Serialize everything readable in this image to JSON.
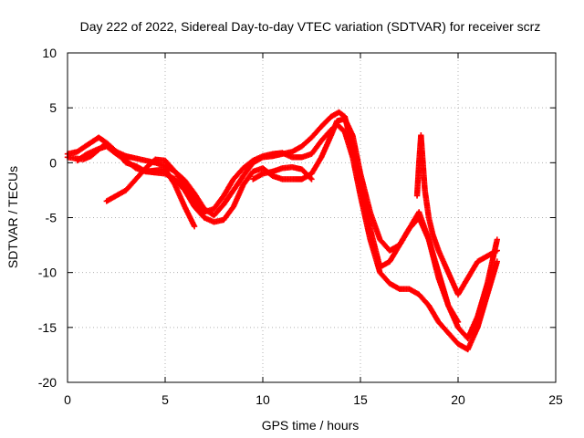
{
  "chart_data": {
    "type": "scatter",
    "title": "Day 222 of 2022, Sidereal Day-to-day VTEC variation (SDTVAR) for receiver scrz",
    "xlabel": "GPS time / hours",
    "ylabel": "SDTVAR / TECUs",
    "xlim": [
      0,
      25
    ],
    "ylim": [
      -20,
      10
    ],
    "xticks": [
      0,
      5,
      10,
      15,
      20,
      25
    ],
    "yticks": [
      -20,
      -15,
      -10,
      -5,
      0,
      5,
      10
    ],
    "x_tick_labels": [
      "0",
      "5",
      "10",
      "15",
      "20",
      "25"
    ],
    "y_tick_labels": [
      "-20",
      "-15",
      "-10",
      "-5",
      "0",
      "5",
      "10"
    ],
    "grid": true,
    "marker": "+",
    "color": "#ff0000",
    "series": [
      {
        "name": "satellite-track-1",
        "x": [
          0.0,
          0.5,
          1.0,
          1.6,
          2.0,
          2.5,
          3.0,
          3.5,
          4.0,
          4.5,
          5.0,
          5.5,
          6.0,
          6.5,
          7.0,
          7.5,
          8.0,
          8.5,
          9.0,
          9.5,
          10.0,
          10.5,
          11.0,
          11.5,
          12.0,
          12.5,
          13.0,
          13.5,
          13.9,
          14.2,
          14.5,
          15.0,
          15.5,
          16.0,
          16.5,
          17.0,
          17.5,
          18.0,
          18.5,
          19.0,
          19.5,
          20.0,
          20.5,
          21.0,
          21.5,
          22.0
        ],
        "y": [
          0.8,
          1.0,
          1.6,
          2.3,
          1.8,
          1.0,
          0.6,
          0.4,
          0.2,
          0.0,
          -0.3,
          -0.8,
          -1.6,
          -2.8,
          -4.2,
          -4.8,
          -3.8,
          -2.5,
          -1.2,
          0.0,
          0.5,
          0.6,
          0.8,
          1.0,
          1.5,
          2.3,
          3.3,
          4.2,
          4.6,
          4.2,
          2.0,
          -1.5,
          -6.0,
          -9.5,
          -9.0,
          -7.5,
          -6.0,
          -5.0,
          -7.0,
          -10.0,
          -13.0,
          -15.0,
          -16.0,
          -14.0,
          -11.0,
          -7.0
        ]
      },
      {
        "name": "satellite-track-2",
        "x": [
          0.0,
          0.4,
          0.8,
          1.2,
          1.6,
          2.0,
          2.5,
          3.0,
          3.5,
          4.0,
          4.5,
          5.0,
          5.5,
          6.0,
          6.5,
          7.0,
          7.5,
          8.0,
          8.5,
          9.0,
          9.5,
          10.0,
          10.5,
          11.0,
          11.5,
          12.0,
          12.5,
          13.0,
          13.5,
          13.8,
          14.2,
          14.6,
          15.0,
          15.5,
          16.0,
          16.5,
          17.0,
          17.5,
          18.0,
          18.5,
          19.0,
          19.5,
          20.0
        ],
        "y": [
          0.5,
          0.4,
          0.3,
          0.6,
          1.2,
          1.8,
          1.0,
          0.0,
          -0.3,
          -0.8,
          -0.9,
          -1.0,
          -1.5,
          -2.5,
          -4.0,
          -5.0,
          -5.4,
          -5.2,
          -4.0,
          -2.0,
          -0.8,
          -0.5,
          -1.2,
          -1.5,
          -1.5,
          -1.5,
          -1.0,
          0.5,
          2.5,
          3.8,
          4.0,
          2.5,
          -1.0,
          -4.5,
          -7.0,
          -8.0,
          -7.5,
          -6.0,
          -4.5,
          -7.0,
          -10.5,
          -13.0,
          -14.5
        ]
      },
      {
        "name": "satellite-track-3",
        "x": [
          2.0,
          2.5,
          3.0,
          3.5,
          4.0,
          4.5,
          5.0,
          5.5,
          6.0,
          6.5,
          7.0,
          7.5,
          8.0,
          8.5,
          9.0,
          9.5,
          10.0,
          10.5,
          11.0,
          11.5,
          12.0,
          12.5,
          13.0,
          13.5,
          13.8,
          14.2,
          14.6,
          15.0,
          15.5,
          16.0,
          16.5,
          17.0,
          17.5,
          18.0,
          18.5,
          19.0,
          19.5,
          20.0,
          20.5,
          21.0,
          21.5,
          22.0
        ],
        "y": [
          -3.5,
          -3.0,
          -2.5,
          -1.5,
          -0.5,
          0.3,
          0.2,
          -0.8,
          -2.0,
          -3.5,
          -4.5,
          -4.2,
          -3.0,
          -1.5,
          -0.5,
          0.2,
          0.6,
          0.8,
          0.9,
          0.5,
          0.5,
          0.8,
          2.0,
          3.0,
          3.5,
          2.8,
          0.5,
          -3.0,
          -7.0,
          -10.0,
          -11.0,
          -11.5,
          -11.5,
          -12.0,
          -13.0,
          -14.5,
          -15.5,
          -16.5,
          -17.0,
          -15.0,
          -12.0,
          -9.0
        ]
      },
      {
        "name": "satellite-track-4",
        "x": [
          0.5,
          1.0,
          1.5,
          2.0,
          2.5,
          3.0,
          3.5,
          4.0,
          4.5,
          5.0,
          5.5,
          6.0,
          6.5
        ],
        "y": [
          0.2,
          0.8,
          1.2,
          1.5,
          0.8,
          0.2,
          -0.5,
          -0.8,
          -0.7,
          -0.6,
          -2.0,
          -4.0,
          -5.8
        ]
      },
      {
        "name": "satellite-track-5",
        "x": [
          9.5,
          10.0,
          10.5,
          11.0,
          11.5,
          12.0,
          12.5
        ],
        "y": [
          -1.5,
          -1.0,
          -0.8,
          -0.5,
          -0.4,
          -0.6,
          -1.5
        ]
      },
      {
        "name": "satellite-track-6",
        "x": [
          17.9,
          18.0,
          18.1,
          18.2,
          18.3,
          18.5,
          18.7,
          19.0,
          19.5,
          20.0,
          20.5,
          21.0,
          21.5,
          22.0
        ],
        "y": [
          -3.0,
          0.0,
          2.5,
          0.0,
          -2.5,
          -5.0,
          -6.5,
          -8.0,
          -10.0,
          -12.0,
          -10.5,
          -9.0,
          -8.5,
          -8.0
        ]
      }
    ]
  }
}
